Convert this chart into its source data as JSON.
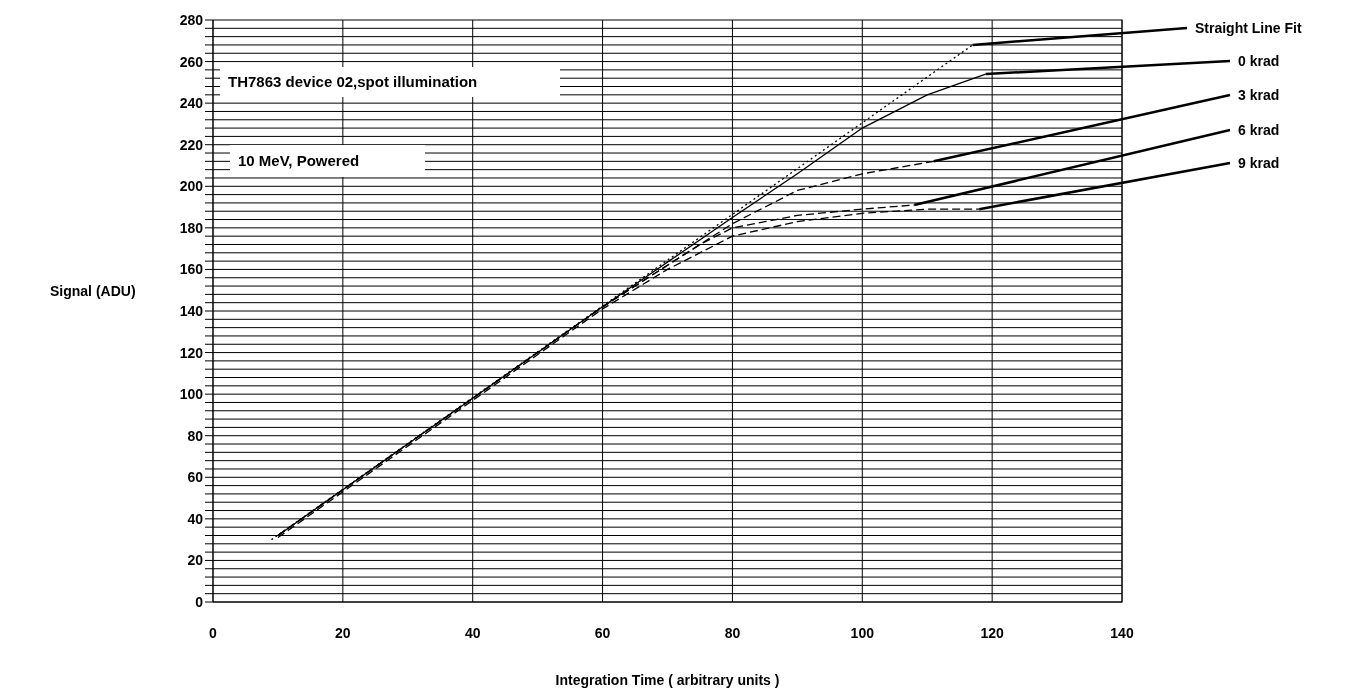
{
  "chart_data": {
    "type": "line",
    "xlabel": "Integration Time ( arbitrary units )",
    "ylabel": "Signal (ADU)",
    "annotations": [
      "TH7863 device 02,spot illumination",
      "10 MeV, Powered"
    ],
    "xlim": [
      0,
      140
    ],
    "xticks": [
      0,
      20,
      40,
      60,
      80,
      100,
      120,
      140
    ],
    "ylim": [
      0,
      280
    ],
    "yticks": [
      0,
      {
        "value": 4,
        "label": null
      },
      {
        "value": 8,
        "label": null
      },
      {
        "value": 12,
        "label": null
      },
      {
        "value": 16,
        "label": null
      },
      20,
      {
        "value": 24,
        "label": null
      },
      {
        "value": 28,
        "label": null
      },
      {
        "value": 32,
        "label": null
      },
      {
        "value": 36,
        "label": null
      },
      40,
      {
        "value": 44,
        "label": null
      },
      {
        "value": 48,
        "label": null
      },
      {
        "value": 52,
        "label": null
      },
      {
        "value": 56,
        "label": null
      },
      60,
      {
        "value": 64,
        "label": null
      },
      {
        "value": 68,
        "label": null
      },
      {
        "value": 72,
        "label": null
      },
      {
        "value": 76,
        "label": null
      },
      80,
      {
        "value": 84,
        "label": null
      },
      {
        "value": 88,
        "label": null
      },
      {
        "value": 92,
        "label": null
      },
      {
        "value": 96,
        "label": null
      },
      100,
      {
        "value": 104,
        "label": null
      },
      {
        "value": 108,
        "label": null
      },
      {
        "value": 112,
        "label": null
      },
      {
        "value": 116,
        "label": null
      },
      120,
      {
        "value": 124,
        "label": null
      },
      {
        "value": 128,
        "label": null
      },
      {
        "value": 132,
        "label": null
      },
      {
        "value": 136,
        "label": null
      },
      140,
      {
        "value": 144,
        "label": null
      },
      {
        "value": 148,
        "label": null
      },
      {
        "value": 152,
        "label": null
      },
      {
        "value": 156,
        "label": null
      },
      160,
      {
        "value": 164,
        "label": null
      },
      {
        "value": 168,
        "label": null
      },
      {
        "value": 172,
        "label": null
      },
      {
        "value": 176,
        "label": null
      },
      180,
      {
        "value": 184,
        "label": null
      },
      {
        "value": 188,
        "label": null
      },
      {
        "value": 192,
        "label": null
      },
      {
        "value": 196,
        "label": null
      },
      200,
      {
        "value": 204,
        "label": null
      },
      {
        "value": 208,
        "label": null
      },
      {
        "value": 212,
        "label": null
      },
      {
        "value": 216,
        "label": null
      },
      220,
      {
        "value": 224,
        "label": null
      },
      {
        "value": 228,
        "label": null
      },
      {
        "value": 232,
        "label": null
      },
      {
        "value": 236,
        "label": null
      },
      240,
      {
        "value": 244,
        "label": null
      },
      {
        "value": 248,
        "label": null
      },
      {
        "value": 252,
        "label": null
      },
      {
        "value": 256,
        "label": null
      },
      260,
      {
        "value": 264,
        "label": null
      },
      {
        "value": 268,
        "label": null
      },
      {
        "value": 272,
        "label": null
      },
      {
        "value": 276,
        "label": null
      },
      280
    ],
    "grid": true,
    "series": [
      {
        "name": "Straight Line Fit",
        "color": "#000000",
        "line_style": "dotted",
        "x": [
          9,
          117
        ],
        "values": [
          30,
          268
        ]
      },
      {
        "name": "0 krad",
        "color": "#000000",
        "line_style": "solid",
        "x": [
          10,
          20,
          40,
          60,
          80,
          90,
          100,
          110,
          119
        ],
        "values": [
          32,
          54,
          98,
          142,
          185,
          206,
          228,
          244,
          254
        ]
      },
      {
        "name": "3 krad",
        "color": "#000000",
        "line_style": "dashed",
        "x": [
          10,
          20,
          40,
          60,
          70,
          80,
          90,
          100,
          111
        ],
        "values": [
          32,
          54,
          98,
          142,
          162,
          182,
          198,
          206,
          212
        ]
      },
      {
        "name": "6 krad",
        "color": "#000000",
        "line_style": "dashed",
        "x": [
          10,
          20,
          40,
          60,
          70,
          75,
          80,
          90,
          100,
          108
        ],
        "values": [
          32,
          54,
          98,
          142,
          162,
          172,
          180,
          186,
          189,
          191
        ]
      },
      {
        "name": "9 krad",
        "color": "#000000",
        "line_style": "dashed",
        "x": [
          10,
          20,
          40,
          60,
          70,
          80,
          90,
          100,
          110,
          118
        ],
        "values": [
          31,
          53,
          97,
          141,
          160,
          176,
          183,
          187,
          189,
          189
        ]
      }
    ]
  }
}
